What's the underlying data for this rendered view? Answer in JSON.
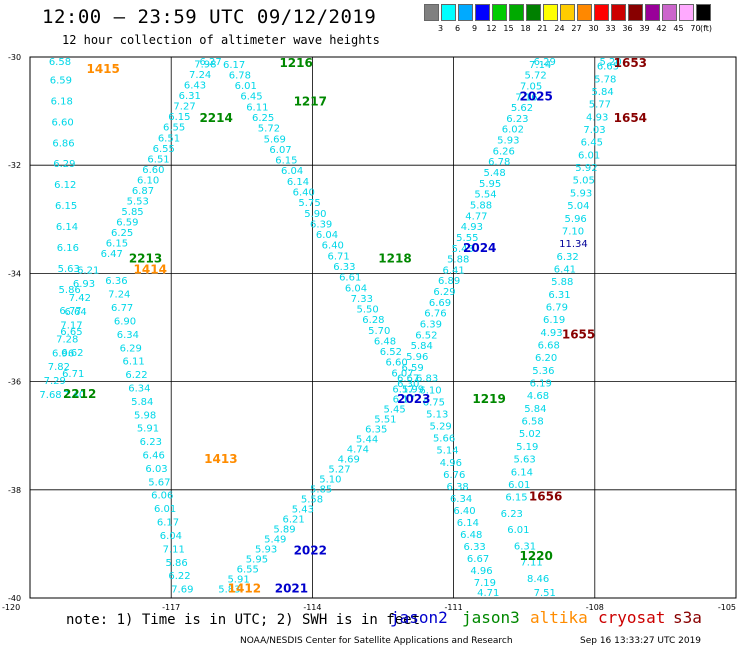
{
  "title": "12:00 – 23:59 UTC 09/12/2019",
  "subtitle": "12 hour collection of altimeter wave heights",
  "note": "note: 1) Time is in UTC; 2) SWH is in feet",
  "credit": "NOAA/NESDIS Center for Satellite Applications and Research",
  "timestamp": "Sep 16 13:33:27 UTC 2019",
  "scale": {
    "labels": [
      "3",
      "6",
      "9",
      "12",
      "15",
      "18",
      "21",
      "24",
      "27",
      "30",
      "33",
      "36",
      "39",
      "42",
      "45",
      "70"
    ],
    "unit": "(ft)",
    "colors": [
      "#808080",
      "#00ffff",
      "#00aaff",
      "#0000ff",
      "#00cc00",
      "#00aa00",
      "#008000",
      "#ffff00",
      "#ffcc00",
      "#ff8800",
      "#ff0000",
      "#cc0000",
      "#880000",
      "#990099",
      "#cc66cc",
      "#ffaaff",
      "#000000"
    ]
  },
  "map": {
    "lat_ticks": [
      "-30",
      "-32",
      "-34",
      "-36",
      "-38",
      "-40"
    ],
    "lon_ticks": [
      "-120",
      "-117",
      "-114",
      "-111",
      "-108",
      "-105"
    ],
    "lat_range": [
      -40,
      -30
    ],
    "lon_range": [
      -120,
      -105
    ]
  },
  "satellites": [
    {
      "name": "jason2",
      "color": "#0000cc"
    },
    {
      "name": "jason3",
      "color": "#008800"
    },
    {
      "name": "altika",
      "color": "#ff8c00"
    },
    {
      "name": "cryosat",
      "color": "#cc0000"
    },
    {
      "name": "s3a",
      "color": "#880000"
    }
  ],
  "pass_times": [
    {
      "text": "1415",
      "sat": "altika",
      "lon": -118.8,
      "lat": -30.3
    },
    {
      "text": "1216",
      "sat": "jason3",
      "lon": -114.7,
      "lat": -29.9
    },
    {
      "text": "1217",
      "sat": "jason3",
      "lon": -114.4,
      "lat": -30.9
    },
    {
      "text": "2214",
      "sat": "jason3",
      "lon": -116.4,
      "lat": -31.2
    },
    {
      "text": "2213",
      "sat": "jason3",
      "lon": -117.9,
      "lat": -33.8
    },
    {
      "text": "1414",
      "sat": "altika",
      "lon": -117.8,
      "lat": -34.0
    },
    {
      "text": "2212",
      "sat": "jason3",
      "lon": -119.3,
      "lat": -36.3
    },
    {
      "text": "1413",
      "sat": "altika",
      "lon": -116.3,
      "lat": -37.5
    },
    {
      "text": "1218",
      "sat": "jason3",
      "lon": -112.6,
      "lat": -33.8
    },
    {
      "text": "2022",
      "sat": "jason2",
      "lon": -114.4,
      "lat": -39.2
    },
    {
      "text": "2021",
      "sat": "jason2",
      "lon": -114.8,
      "lat": -39.9
    },
    {
      "text": "1412",
      "sat": "altika",
      "lon": -115.8,
      "lat": -39.9
    },
    {
      "text": "2023",
      "sat": "jason2",
      "lon": -112.2,
      "lat": -36.4
    },
    {
      "text": "1219",
      "sat": "jason3",
      "lon": -110.6,
      "lat": -36.4
    },
    {
      "text": "2025",
      "sat": "jason2",
      "lon": -109.6,
      "lat": -30.8
    },
    {
      "text": "2024",
      "sat": "jason2",
      "lon": -110.8,
      "lat": -33.6
    },
    {
      "text": "1653",
      "sat": "s3a",
      "lon": -107.6,
      "lat": -29.9
    },
    {
      "text": "1654",
      "sat": "s3a",
      "lon": -107.6,
      "lat": -31.2
    },
    {
      "text": "1655",
      "sat": "s3a",
      "lon": -108.7,
      "lat": -35.2
    },
    {
      "text": "1656",
      "sat": "s3a",
      "lon": -109.4,
      "lat": -38.2
    },
    {
      "text": "1220",
      "sat": "jason3",
      "lon": -109.6,
      "lat": -39.3
    }
  ],
  "tracks": [
    {
      "color": "#00d7e8",
      "lon_start": -119.6,
      "lat_start": -30.1,
      "lon_end": -119.3,
      "lat_end": -36.3,
      "values": [
        "6.58",
        "6.59",
        "6.18",
        "6.60",
        "6.86",
        "6.29",
        "6.12",
        "6.15",
        "6.14",
        "6.16",
        "5.63",
        "5.86",
        "6.77",
        "6.65",
        "6.62",
        "6.71",
        "7.40"
      ]
    },
    {
      "color": "#00d7e8",
      "lon_start": -119.0,
      "lat_start": -34.0,
      "lon_end": -119.8,
      "lat_end": -36.3,
      "values": [
        "6.21",
        "6.93",
        "7.42",
        "6.64",
        "7.17",
        "7.28",
        "6.96",
        "7.82",
        "7.29",
        "7.68"
      ]
    },
    {
      "color": "#00d7e8",
      "lon_start": -118.5,
      "lat_start": -33.7,
      "lon_end": -116.4,
      "lat_end": -30.0,
      "values": [
        "6.47",
        "6.15",
        "6.25",
        "6.59",
        "5.85",
        "5.53",
        "6.87",
        "6.10",
        "6.60",
        "6.51",
        "6.55",
        "6.51",
        "6.55",
        "6.15",
        "7.27",
        "6.31",
        "6.43",
        "7.24",
        "7.98",
        "6.27"
      ]
    },
    {
      "color": "#00d7e8",
      "lon_start": -118.4,
      "lat_start": -34.2,
      "lon_end": -117.0,
      "lat_end": -39.9,
      "values": [
        "6.36",
        "7.24",
        "6.77",
        "6.90",
        "6.34",
        "6.29",
        "6.11",
        "6.22",
        "6.34",
        "5.84",
        "5.98",
        "5.91",
        "6.23",
        "6.46",
        "6.03",
        "5.67",
        "6.06",
        "6.01",
        "6.17",
        "6.04",
        "7.11",
        "5.86",
        "6.22",
        "7.69"
      ]
    },
    {
      "color": "#00d7e8",
      "lon_start": -115.9,
      "lat_start": -30.2,
      "lon_end": -112.2,
      "lat_end": -36.1,
      "values": [
        "6.17",
        "6.78",
        "6.01",
        "6.45",
        "6.11",
        "6.25",
        "5.72",
        "5.69",
        "6.07",
        "6.15",
        "6.04",
        "6.14",
        "6.40",
        "5.75",
        "5.90",
        "6.39",
        "6.04",
        "6.40",
        "6.71",
        "6.33",
        "6.61",
        "6.04",
        "7.33",
        "5.50",
        "6.28",
        "5.70",
        "6.48",
        "6.52",
        "6.60",
        "6.07",
        "6.30"
      ]
    },
    {
      "color": "#00d7e8",
      "lon_start": -112.1,
      "lat_start": -36.2,
      "lon_end": -116.0,
      "lat_end": -39.9,
      "values": [
        "5.99",
        "6.17",
        "5.45",
        "5.51",
        "6.35",
        "5.44",
        "4.74",
        "4.69",
        "5.27",
        "5.10",
        "5.85",
        "5.58",
        "5.43",
        "6.21",
        "5.89",
        "5.49",
        "5.93",
        "5.95",
        "6.55",
        "5.91",
        "5.83"
      ]
    },
    {
      "color": "#00d7e8",
      "lon_start": -109.3,
      "lat_start": -30.0,
      "lon_end": -112.3,
      "lat_end": -36.2,
      "values": [
        "6.29",
        "7.14",
        "5.72",
        "7.05",
        "7.16",
        "5.62",
        "6.23",
        "6.02",
        "5.93",
        "6.26",
        "6.78",
        "5.48",
        "5.95",
        "5.54",
        "5.88",
        "4.77",
        "4.93",
        "5.55",
        "5.43",
        "5.88",
        "6.41",
        "6.89",
        "6.29",
        "6.69",
        "6.76",
        "6.39",
        "6.52",
        "5.84",
        "5.96",
        "6.59",
        "6.67",
        "6.17"
      ]
    },
    {
      "color": "#00d7e8",
      "lon_start": -111.8,
      "lat_start": -36.0,
      "lon_end": -110.5,
      "lat_end": -40.0,
      "values": [
        "6.83",
        "6.10",
        "6.75",
        "5.13",
        "5.29",
        "5.66",
        "5.14",
        "4.96",
        "6.76",
        "6.38",
        "6.34",
        "6.40",
        "6.14",
        "6.48",
        "6.33",
        "6.67",
        "4.96",
        "7.19",
        "4.71"
      ]
    },
    {
      "color": "#00d7e8",
      "lon_start": -107.9,
      "lat_start": -30.0,
      "lon_end": -109.9,
      "lat_end": -38.2,
      "values": [
        "5.20",
        "6.65",
        "5.78",
        "5.84",
        "5.77",
        "4.93",
        "7.03",
        "6.45",
        "6.01",
        "5.92",
        "5.05",
        "5.93",
        "5.04",
        "5.96",
        "7.10",
        "11.34",
        "6.32",
        "6.41",
        "5.88",
        "6.31",
        "6.79",
        "6.19",
        "4.93",
        "6.68",
        "6.20",
        "5.36",
        "6.19",
        "4.68",
        "5.84",
        "6.58",
        "5.02",
        "5.19",
        "5.63",
        "6.14",
        "6.01",
        "6.15"
      ]
    },
    {
      "color": "#00d7e8",
      "lon_start": -110.0,
      "lat_start": -38.5,
      "lon_end": -109.3,
      "lat_end": -40.0,
      "values": [
        "6.23",
        "6.01",
        "6.31",
        "7.11",
        "8.46",
        "7.51"
      ]
    }
  ]
}
